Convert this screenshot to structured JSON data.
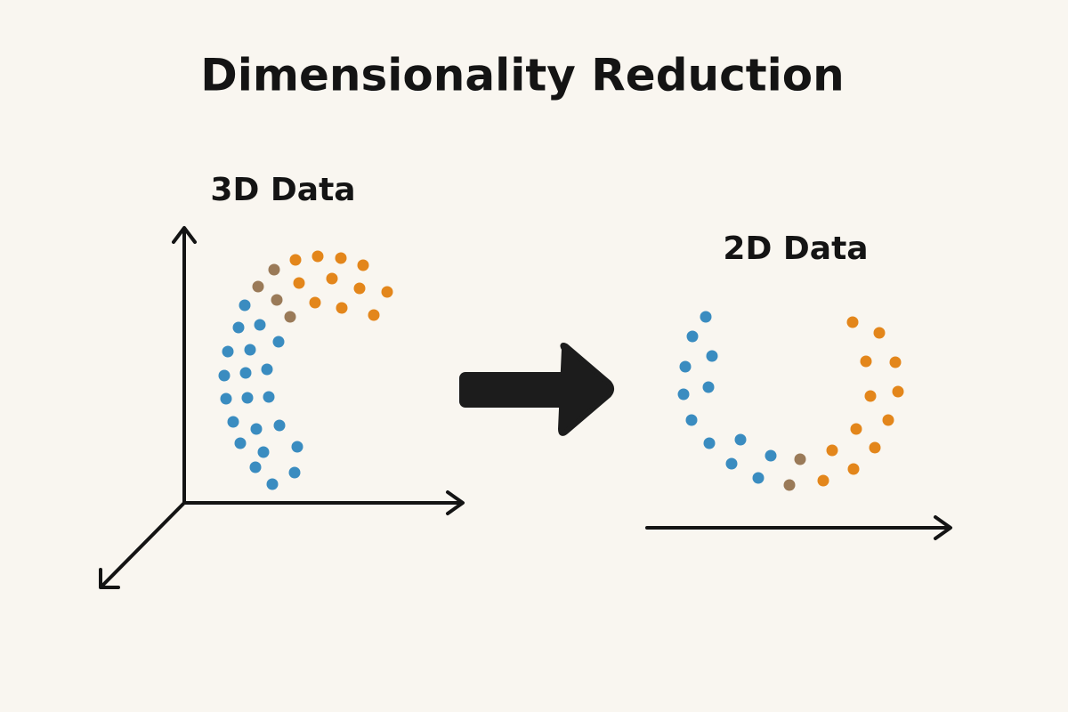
{
  "title": "Dimensionality Reduction",
  "panels": {
    "left": {
      "label": "3D Data"
    },
    "right": {
      "label": "2D Data"
    }
  }
}
